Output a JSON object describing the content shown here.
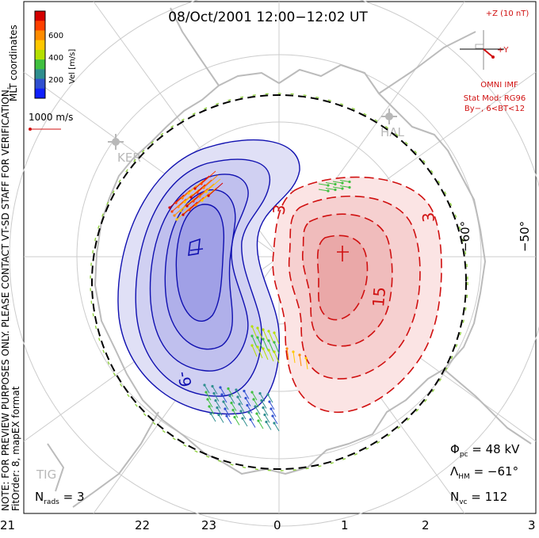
{
  "title": "08/Oct/2001 12:00−12:02 UT",
  "side_note_1": "NOTE: FOR PREVIEW PURPOSES ONLY. PLEASE CONTACT VT-SD STAFF FOR VERIFICATION.",
  "side_note_2": "FitOrder: 8, mapEX format",
  "mlt_label": "MLT coordinates",
  "colorbar": {
    "label": "Vel [m/s]",
    "ticks": [
      "600",
      "400",
      "200"
    ],
    "colors": [
      "#d40000",
      "#ff4000",
      "#ff8c00",
      "#ffc800",
      "#b4e000",
      "#40c040",
      "#2f8f8f",
      "#3050d0",
      "#1020ff"
    ]
  },
  "vector_scale": "1000 m/s",
  "imf": {
    "z_label": "+Z (10 nT)",
    "y_label": "+Y",
    "source": "OMNI IMF",
    "model": "Stat Mod: RG96",
    "condition": "By−, 6<BT<12"
  },
  "stations": [
    "KER",
    "HAL",
    "TIG"
  ],
  "lat_labels": [
    "−60°",
    "−50°"
  ],
  "contour_labels": {
    "neg": [
      "-9"
    ],
    "pos": [
      "3",
      "15",
      "3"
    ]
  },
  "mlt_ticks": [
    "21",
    "22",
    "23",
    "0",
    "1",
    "2",
    "3"
  ],
  "stats": {
    "phi_sym": "Φ",
    "phi_sub": "pc",
    "phi_val": " = 48 kV",
    "lambda_sym": "Λ",
    "lambda_sub": "HM",
    "lambda_val": " = −61°",
    "nvc_sym": "N",
    "nvc_sub": "vc",
    "nvc_val": " = 112",
    "nrads_sym": "N",
    "nrads_sub": "rads",
    "nrads_val": " = 3"
  },
  "colors": {
    "neg_fill": "#b8b8ee",
    "pos_fill": "#f2b8b8",
    "neg_line": "#1010b0",
    "pos_line": "#d01010",
    "coast": "#bbbbbb",
    "grid": "#cccccc",
    "hmb": "#000000",
    "hmb_dash": "#90d040",
    "title_red": "#d01010"
  }
}
